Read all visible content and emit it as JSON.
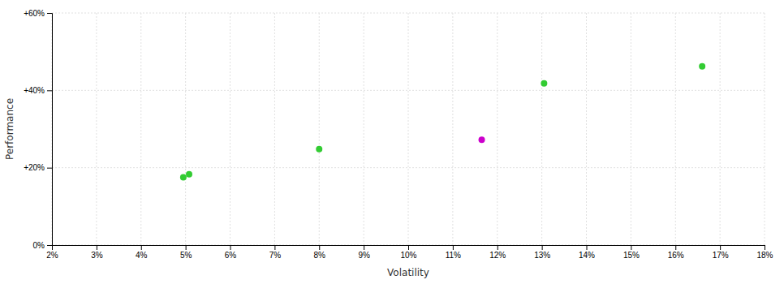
{
  "chart_data": {
    "type": "scatter",
    "xlabel": "Volatility",
    "ylabel": "Performance",
    "xlim": [
      0.02,
      0.18
    ],
    "ylim": [
      0.0,
      0.6
    ],
    "xticks": [
      {
        "value": 0.02,
        "label": "2%"
      },
      {
        "value": 0.03,
        "label": "3%"
      },
      {
        "value": 0.04,
        "label": "4%"
      },
      {
        "value": 0.05,
        "label": "5%"
      },
      {
        "value": 0.06,
        "label": "6%"
      },
      {
        "value": 0.07,
        "label": "7%"
      },
      {
        "value": 0.08,
        "label": "8%"
      },
      {
        "value": 0.09,
        "label": "9%"
      },
      {
        "value": 0.1,
        "label": "10%"
      },
      {
        "value": 0.11,
        "label": "11%"
      },
      {
        "value": 0.12,
        "label": "12%"
      },
      {
        "value": 0.13,
        "label": "13%"
      },
      {
        "value": 0.14,
        "label": "14%"
      },
      {
        "value": 0.15,
        "label": "15%"
      },
      {
        "value": 0.16,
        "label": "16%"
      },
      {
        "value": 0.17,
        "label": "17%"
      },
      {
        "value": 0.18,
        "label": "18%"
      }
    ],
    "yticks": [
      {
        "value": 0.0,
        "label": "0%"
      },
      {
        "value": 0.2,
        "label": "+20%"
      },
      {
        "value": 0.4,
        "label": "+40%"
      },
      {
        "value": 0.6,
        "label": "+60%"
      }
    ],
    "grid": true,
    "series": [
      {
        "color": "#33cc33",
        "x": [
          0.0495,
          0.0508,
          0.08,
          0.1305,
          0.166
        ],
        "values": [
          0.175,
          0.183,
          0.248,
          0.418,
          0.462
        ]
      },
      {
        "color": "#cc00cc",
        "x": [
          0.1165
        ],
        "values": [
          0.272
        ]
      }
    ]
  }
}
